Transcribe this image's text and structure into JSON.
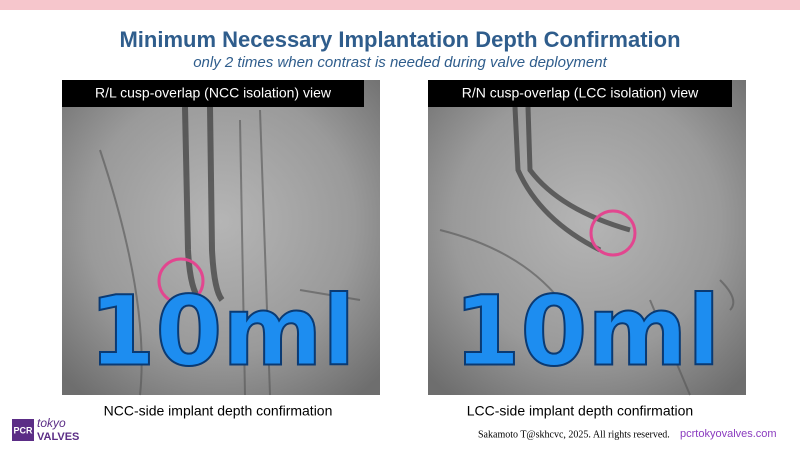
{
  "header": {
    "title": "Minimum Necessary Implantation Depth Confirmation",
    "subtitle": "only 2 times when contrast is needed during valve deployment"
  },
  "panels": [
    {
      "label": "R/L cusp-overlap (NCC isolation) view",
      "overlay": "10ml",
      "caption": "NCC-side implant depth confirmation"
    },
    {
      "label": "R/N cusp-overlap (LCC isolation) view",
      "overlay": "10ml",
      "caption": "LCC-side implant depth confirmation"
    }
  ],
  "logo": {
    "mark": "PCR",
    "line1": "tokyo",
    "line2": "VALVES"
  },
  "footer": {
    "copyright": "Sakamoto T@skhcvc, 2025. All rights reserved.",
    "url": "pcrtokyovalves.com"
  }
}
